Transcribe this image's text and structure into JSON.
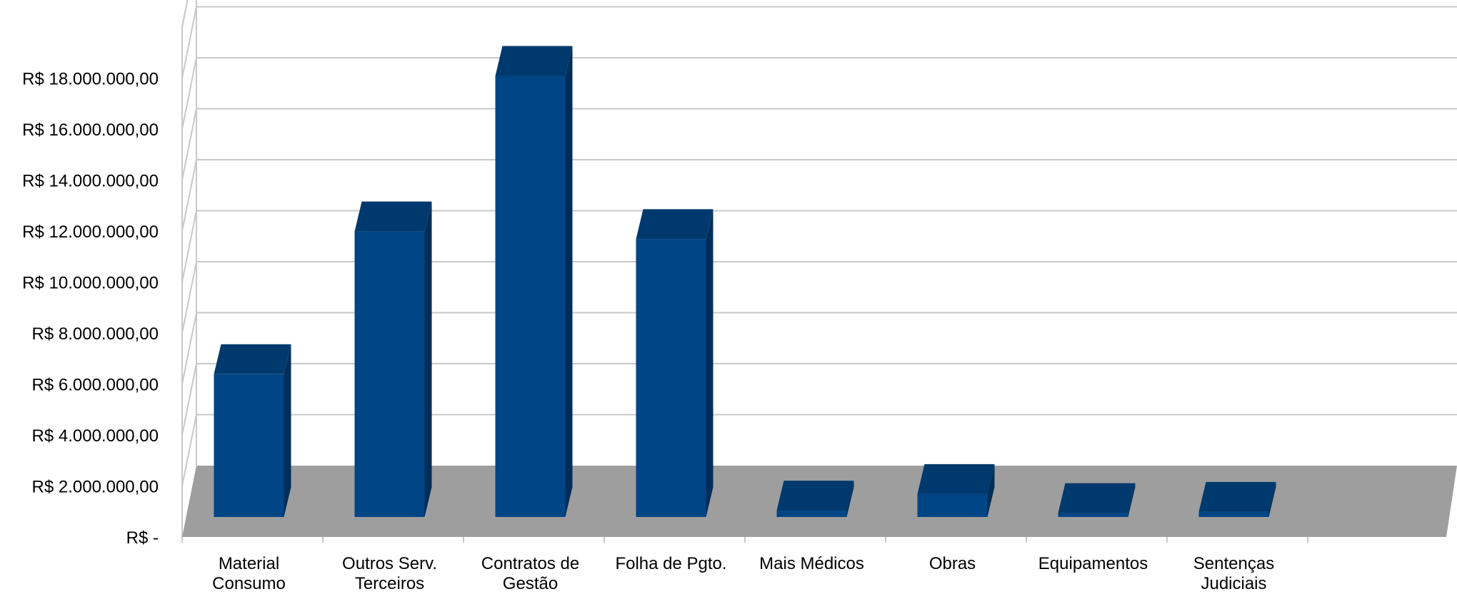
{
  "chart_data": {
    "type": "bar",
    "style": "3d-column",
    "title": "",
    "xlabel": "",
    "ylabel": "",
    "categories": [
      [
        "Material",
        "Consumo"
      ],
      [
        "Outros Serv.",
        "Terceiros"
      ],
      [
        "Contratos de",
        "Gestão"
      ],
      [
        "Folha de Pgto."
      ],
      [
        "Mais Médicos"
      ],
      [
        "Obras"
      ],
      [
        "Equipamentos"
      ],
      [
        "Sentenças",
        "Judiciais"
      ]
    ],
    "values": [
      5600000,
      11200000,
      17300000,
      10900000,
      250000,
      900000,
      150000,
      200000
    ],
    "ylim": [
      0,
      20000000
    ],
    "yticks": [
      0,
      2000000,
      4000000,
      6000000,
      8000000,
      10000000,
      12000000,
      14000000,
      16000000,
      18000000
    ],
    "ytick_labels": [
      "R$ -",
      "R$ 2.000.000,00",
      "R$ 4.000.000,00",
      "R$ 6.000.000,00",
      "R$ 8.000.000,00",
      "R$ 10.000.000,00",
      "R$ 12.000.000,00",
      "R$ 14.000.000,00",
      "R$ 16.000.000,00",
      "R$ 18.000.000,00"
    ],
    "grid": true,
    "legend": "none",
    "colors": {
      "bar_front": "#004586",
      "bar_top": "#00396d",
      "bar_side": "#002e58",
      "floor": "#9e9e9e",
      "grid": "#c8c8c8"
    }
  }
}
